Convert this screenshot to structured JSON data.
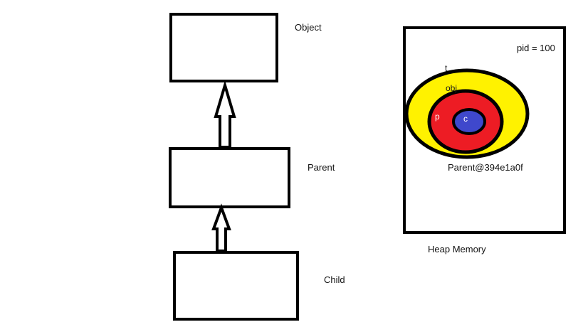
{
  "hierarchy": {
    "object_label": "Object",
    "parent_label": "Parent",
    "child_label": "Child"
  },
  "heap": {
    "caption": "Heap Memory",
    "pid_text": "pid = 100",
    "address_text": "Parent@394e1a0f",
    "obj_ref": "obj",
    "p_ref": "p",
    "c_ref": "c",
    "t_ref": "t"
  },
  "colors": {
    "stroke": "#000000",
    "outer_ellipse": "#FFF200",
    "middle_ellipse": "#ED1C24",
    "inner_ellipse": "#3F48CC"
  }
}
